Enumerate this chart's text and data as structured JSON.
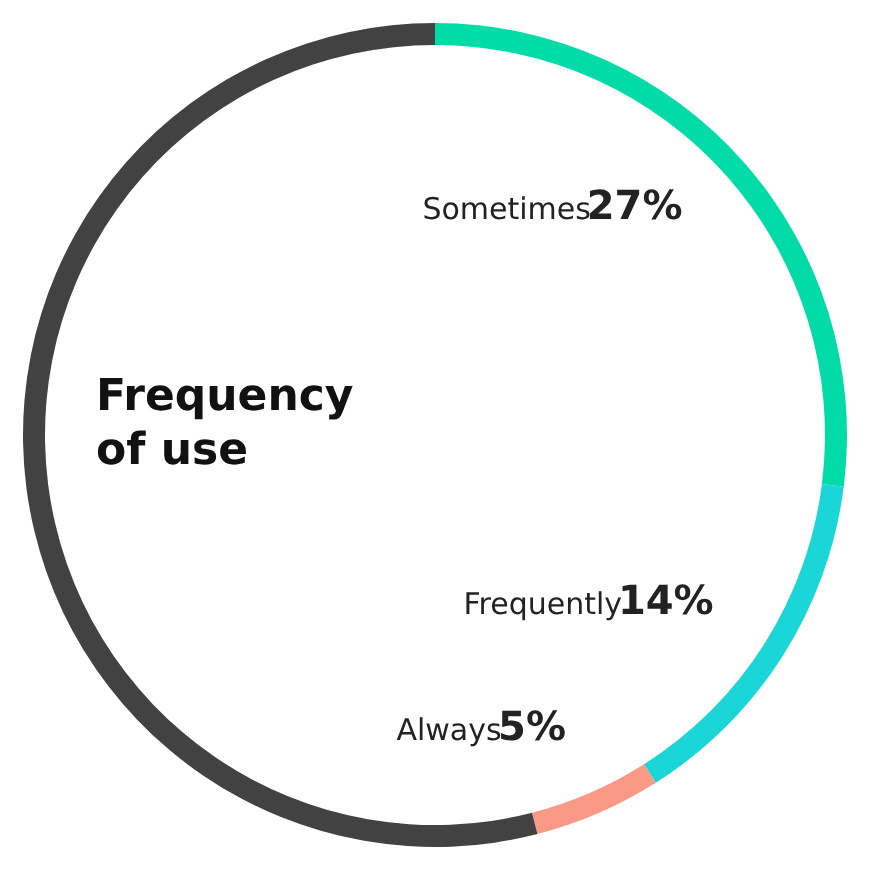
{
  "chart_data": {
    "type": "donut",
    "title": "Frequency of use",
    "categories": [
      "Sometimes",
      "Frequently",
      "Always",
      null
    ],
    "values": [
      27,
      14,
      5,
      54
    ],
    "value_labels": [
      "27%",
      "14%",
      "5%",
      null
    ],
    "colors": [
      "#00dba8",
      "#1ad6d6",
      "#fa9985",
      "#424242"
    ]
  }
}
